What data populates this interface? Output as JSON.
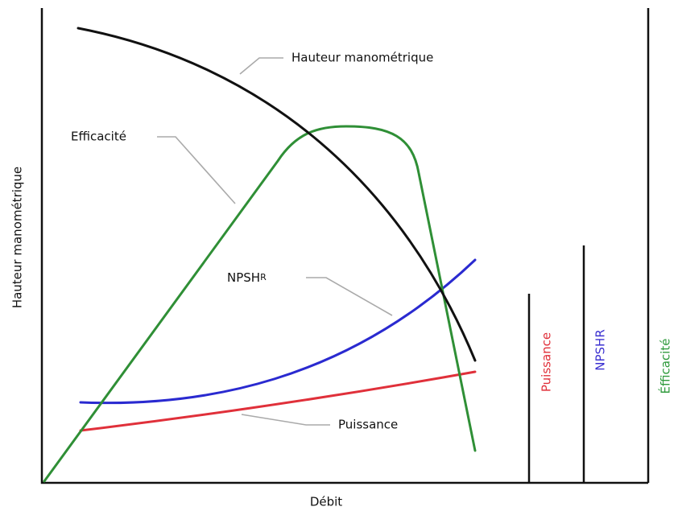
{
  "labels": {
    "head": "Hauteur manométrique",
    "efficiency": "Efficacité",
    "npshr": {
      "text": "NPSH",
      "subscript": "R"
    },
    "power": "Puissance"
  },
  "axes": {
    "y_title": "Hauteur manométrique",
    "x_title": "Débit"
  },
  "side_axes": [
    {
      "label": "Puissance",
      "color": "#e0303a"
    },
    {
      "label": "NPSHR",
      "color": "#3a2fd0"
    },
    {
      "label": "Éfficacité",
      "color": "#2f9a3c"
    }
  ]
}
